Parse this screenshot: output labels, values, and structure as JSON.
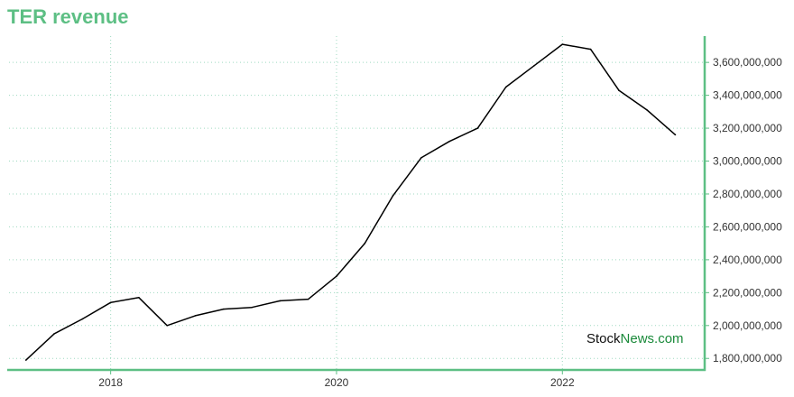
{
  "colors": {
    "title": "#5dbf84",
    "axis": "#5dbf84",
    "grid": "#9fd9c0",
    "line": "#000000",
    "watermark_news": "#1a8a3a"
  },
  "watermark": {
    "part1": "Stock",
    "part2": "News.com"
  },
  "chart_data": {
    "type": "line",
    "title": "TER revenue",
    "xlabel": "",
    "ylabel": "",
    "grid": true,
    "y_axis_side": "right",
    "xlim": [
      2017.1,
      2023.26
    ],
    "ylim": [
      1730000000,
      3760000000
    ],
    "y_ticks": [
      1800000000,
      2000000000,
      2200000000,
      2400000000,
      2600000000,
      2800000000,
      3000000000,
      3200000000,
      3400000000,
      3600000000
    ],
    "y_tick_labels": [
      "1,800,000,000",
      "2,000,000,000",
      "2,200,000,000",
      "2,400,000,000",
      "2,600,000,000",
      "2,800,000,000",
      "3,000,000,000",
      "3,200,000,000",
      "3,400,000,000",
      "3,600,000,000"
    ],
    "x_ticks": [
      2018,
      2020,
      2022
    ],
    "x_tick_labels": [
      "2018",
      "2020",
      "2022"
    ],
    "series": [
      {
        "x": [
          2017.25,
          2017.5,
          2017.75,
          2018.0,
          2018.25,
          2018.5,
          2018.75,
          2019.0,
          2019.25,
          2019.5,
          2019.75,
          2020.0,
          2020.25,
          2020.5,
          2020.75,
          2021.0,
          2021.25,
          2021.5,
          2021.75,
          2022.0,
          2022.25,
          2022.5,
          2022.75,
          2023.0
        ],
        "values": [
          1790000000,
          1950000000,
          2040000000,
          2140000000,
          2170000000,
          2000000000,
          2060000000,
          2100000000,
          2110000000,
          2150000000,
          2160000000,
          2300000000,
          2500000000,
          2790000000,
          3020000000,
          3120000000,
          3200000000,
          3450000000,
          3580000000,
          3710000000,
          3680000000,
          3430000000,
          3310000000,
          3160000000
        ]
      }
    ]
  }
}
